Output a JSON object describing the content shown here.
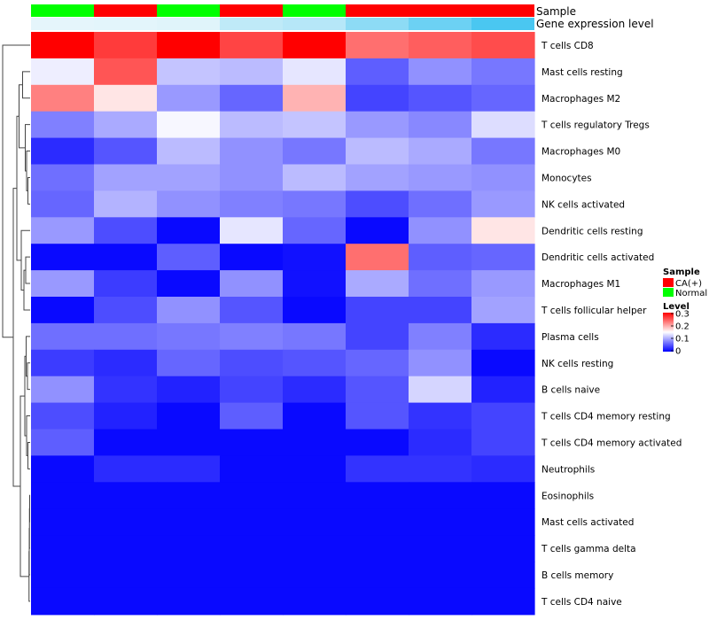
{
  "chart_data": {
    "type": "heatmap",
    "title": "",
    "rows": [
      "T cells CD8",
      "Mast cells resting",
      "Macrophages M2",
      "T cells regulatory  Tregs",
      "Macrophages M0",
      "Monocytes",
      "NK cells activated",
      "Dendritic cells resting",
      "Dendritic cells activated",
      "Macrophages M1",
      "T cells follicular helper",
      "Plasma cells",
      "NK cells resting",
      "B cells naive",
      "T cells CD4 memory resting",
      "T cells CD4 memory activated",
      "Neutrophils",
      "Eosinophils",
      "Mast cells activated",
      "T cells gamma delta",
      "B cells memory",
      "T cells CD4 naive"
    ],
    "values": [
      [
        0.3,
        0.265,
        0.3,
        0.26,
        0.3,
        0.235,
        0.245,
        0.255
      ],
      [
        0.14,
        0.25,
        0.115,
        0.11,
        0.135,
        0.055,
        0.085,
        0.07
      ],
      [
        0.225,
        0.165,
        0.09,
        0.06,
        0.195,
        0.04,
        0.05,
        0.06
      ],
      [
        0.075,
        0.1,
        0.145,
        0.11,
        0.115,
        0.09,
        0.08,
        0.13
      ],
      [
        0.025,
        0.05,
        0.11,
        0.085,
        0.07,
        0.11,
        0.1,
        0.07
      ],
      [
        0.065,
        0.095,
        0.095,
        0.085,
        0.11,
        0.095,
        0.09,
        0.085
      ],
      [
        0.06,
        0.105,
        0.085,
        0.075,
        0.07,
        0.045,
        0.065,
        0.09
      ],
      [
        0.09,
        0.045,
        0.005,
        0.135,
        0.06,
        0.005,
        0.085,
        0.165
      ],
      [
        0.005,
        0.005,
        0.055,
        0.005,
        0.01,
        0.235,
        0.055,
        0.06
      ],
      [
        0.09,
        0.035,
        0.005,
        0.085,
        0.01,
        0.1,
        0.065,
        0.09
      ],
      [
        0.005,
        0.045,
        0.085,
        0.05,
        0.005,
        0.04,
        0.04,
        0.095
      ],
      [
        0.065,
        0.065,
        0.07,
        0.075,
        0.07,
        0.04,
        0.075,
        0.025
      ],
      [
        0.035,
        0.025,
        0.06,
        0.045,
        0.05,
        0.06,
        0.085,
        0.005
      ],
      [
        0.085,
        0.03,
        0.02,
        0.04,
        0.025,
        0.05,
        0.125,
        0.02
      ],
      [
        0.045,
        0.02,
        0.005,
        0.055,
        0.005,
        0.05,
        0.03,
        0.04
      ],
      [
        0.055,
        0.005,
        0.005,
        0.005,
        0.005,
        0.005,
        0.025,
        0.04
      ],
      [
        0.005,
        0.025,
        0.025,
        0.005,
        0.005,
        0.03,
        0.03,
        0.025
      ],
      [
        0.005,
        0.005,
        0.005,
        0.005,
        0.005,
        0.005,
        0.005,
        0.005
      ],
      [
        0.005,
        0.005,
        0.005,
        0.005,
        0.005,
        0.005,
        0.005,
        0.005
      ],
      [
        0.005,
        0.005,
        0.005,
        0.005,
        0.005,
        0.005,
        0.005,
        0.005
      ],
      [
        0.005,
        0.005,
        0.005,
        0.005,
        0.005,
        0.005,
        0.005,
        0.005
      ],
      [
        0.005,
        0.005,
        0.005,
        0.005,
        0.005,
        0.005,
        0.005,
        0.005
      ]
    ],
    "annotations": {
      "sample_label": "Sample",
      "gene_label": "Gene expression level",
      "sample": [
        "Normal",
        "CA(+)",
        "Normal",
        "CA(+)",
        "Normal",
        "CA(+)",
        "CA(+)",
        "CA(+)"
      ],
      "gene_level": [
        0.02,
        0.03,
        0.05,
        0.25,
        0.3,
        0.55,
        0.75,
        0.95
      ]
    },
    "colorscale": {
      "min": 0,
      "max": 0.3,
      "stops": [
        "#0000ff",
        "#ffffff",
        "#ff0000"
      ]
    },
    "legend": {
      "sample_title": "Sample",
      "sample_items": [
        {
          "label": "CA(+)",
          "color": "#ff0000"
        },
        {
          "label": "Normal",
          "color": "#00ff00"
        }
      ],
      "level_title": "Level",
      "level_ticks": [
        "0.3",
        "0.2",
        "0.1",
        "0"
      ]
    },
    "dendrogram": {
      "merges": [
        [
          -18,
          -19
        ],
        [
          -20,
          1
        ],
        [
          -21,
          2
        ],
        [
          -22,
          3
        ],
        [
          -16,
          -17
        ],
        [
          -15,
          5
        ],
        [
          -14,
          -13
        ],
        [
          7,
          -12
        ],
        [
          6,
          8
        ],
        [
          4,
          9
        ],
        [
          -9,
          -10
        ],
        [
          -11,
          11
        ],
        [
          -8,
          12
        ],
        [
          -6,
          -7
        ],
        [
          -5,
          14
        ],
        [
          -4,
          15
        ],
        [
          -2,
          -3
        ],
        [
          17,
          16
        ],
        [
          18,
          13
        ],
        [
          19,
          10
        ],
        [
          -1,
          20
        ]
      ],
      "heights": [
        0.01,
        0.015,
        0.02,
        0.025,
        0.05,
        0.08,
        0.06,
        0.09,
        0.12,
        0.22,
        0.1,
        0.14,
        0.2,
        0.05,
        0.08,
        0.11,
        0.17,
        0.25,
        0.3,
        0.38,
        0.62
      ]
    },
    "colors": {
      "sample_ca": "#ff0000",
      "sample_normal": "#00ff00",
      "gene_low": "#e8f6fb",
      "gene_high": "#42c5f0",
      "dendro": "#444444"
    }
  }
}
